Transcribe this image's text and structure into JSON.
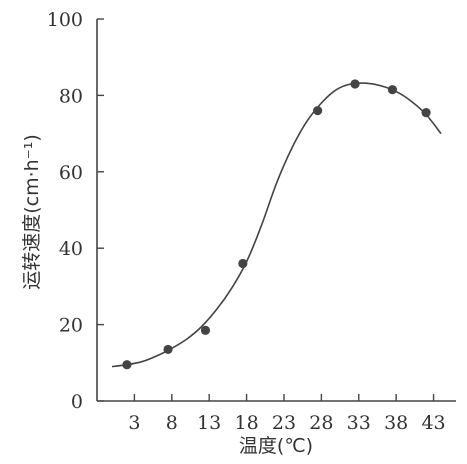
{
  "chart_data": {
    "type": "scatter",
    "xlabel": "温度(℃)",
    "ylabel": "运转速度(cm·h⁻¹)",
    "x_ticks": [
      3,
      8,
      13,
      18,
      23,
      28,
      33,
      38,
      43
    ],
    "y_ticks": [
      0,
      20,
      40,
      60,
      80,
      100
    ],
    "xlim": [
      -2,
      46
    ],
    "ylim": [
      0,
      100
    ],
    "grid": false,
    "series": [
      {
        "points": [
          {
            "x": 2,
            "y": 9.5
          },
          {
            "x": 7.5,
            "y": 13.5
          },
          {
            "x": 12.5,
            "y": 18.5
          },
          {
            "x": 17.5,
            "y": 36
          },
          {
            "x": 27.5,
            "y": 76
          },
          {
            "x": 32.5,
            "y": 83
          },
          {
            "x": 37.5,
            "y": 81.5
          },
          {
            "x": 42,
            "y": 75.5
          }
        ],
        "curve": [
          [
            0,
            9
          ],
          [
            2,
            9.5
          ],
          [
            4,
            10.3
          ],
          [
            6,
            11.8
          ],
          [
            8,
            13.8
          ],
          [
            10,
            16.2
          ],
          [
            12,
            19.5
          ],
          [
            14,
            24
          ],
          [
            16,
            29.5
          ],
          [
            18,
            36.5
          ],
          [
            20,
            46
          ],
          [
            22,
            57
          ],
          [
            24,
            66
          ],
          [
            26,
            73
          ],
          [
            28,
            78
          ],
          [
            30,
            81.5
          ],
          [
            32,
            83
          ],
          [
            34,
            83.2
          ],
          [
            36,
            82.5
          ],
          [
            38,
            81
          ],
          [
            40,
            78.5
          ],
          [
            42,
            75
          ],
          [
            44,
            70
          ]
        ]
      }
    ]
  }
}
